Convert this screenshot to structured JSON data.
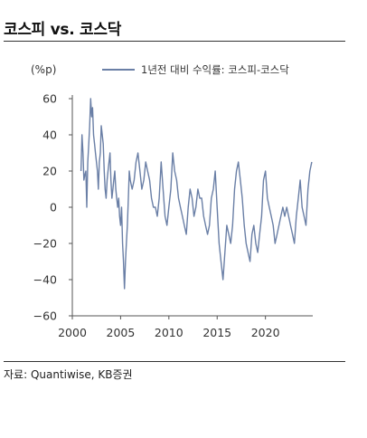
{
  "header": {
    "title": "코스피 vs. 코스닥"
  },
  "footer": {
    "source": "자료: Quantiwise, KB증권"
  },
  "chart_data": {
    "type": "line",
    "title": "코스피 vs. 코스닥",
    "xlabel": "",
    "ylabel": "(%p)",
    "ylim": [
      -60,
      60
    ],
    "xlim": [
      2000,
      2024.9
    ],
    "y_ticks": [
      "60",
      "40",
      "20",
      "0",
      "−20",
      "−40",
      "−60"
    ],
    "y_tick_values": [
      60,
      40,
      20,
      0,
      -20,
      -40,
      -60
    ],
    "x_ticks": [
      "2000",
      "2005",
      "2010",
      "2015",
      "2020"
    ],
    "x_tick_values": [
      2000,
      2005,
      2010,
      2015,
      2020
    ],
    "grid": false,
    "legend_position": "top",
    "colors": {
      "series": "#6a7fa6"
    },
    "series": [
      {
        "name": "1년전 대비 수익률: 코스피-코스닥",
        "x": [
          2000.9,
          2001.0,
          2001.1,
          2001.2,
          2001.3,
          2001.4,
          2001.5,
          2001.6,
          2001.7,
          2001.8,
          2001.9,
          2002.0,
          2002.1,
          2002.2,
          2002.3,
          2002.4,
          2002.5,
          2002.6,
          2002.7,
          2002.8,
          2002.9,
          2003.0,
          2003.1,
          2003.2,
          2003.3,
          2003.4,
          2003.5,
          2003.6,
          2003.7,
          2003.8,
          2003.9,
          2004.0,
          2004.1,
          2004.2,
          2004.3,
          2004.4,
          2004.5,
          2004.6,
          2004.7,
          2004.8,
          2004.9,
          2005.0,
          2005.1,
          2005.2,
          2005.3,
          2005.4,
          2005.5,
          2005.6,
          2005.7,
          2005.8,
          2005.9,
          2006.0,
          2006.2,
          2006.4,
          2006.6,
          2006.8,
          2007.0,
          2007.2,
          2007.4,
          2007.6,
          2007.8,
          2008.0,
          2008.2,
          2008.4,
          2008.6,
          2008.8,
          2009.0,
          2009.2,
          2009.4,
          2009.6,
          2009.8,
          2010.0,
          2010.2,
          2010.4,
          2010.6,
          2010.8,
          2011.0,
          2011.2,
          2011.4,
          2011.6,
          2011.8,
          2012.0,
          2012.2,
          2012.4,
          2012.6,
          2012.8,
          2013.0,
          2013.2,
          2013.4,
          2013.6,
          2013.8,
          2014.0,
          2014.2,
          2014.4,
          2014.6,
          2014.8,
          2015.0,
          2015.2,
          2015.4,
          2015.6,
          2015.8,
          2016.0,
          2016.2,
          2016.4,
          2016.6,
          2016.8,
          2017.0,
          2017.2,
          2017.4,
          2017.6,
          2017.8,
          2018.0,
          2018.2,
          2018.4,
          2018.6,
          2018.8,
          2019.0,
          2019.2,
          2019.4,
          2019.6,
          2019.8,
          2020.0,
          2020.2,
          2020.4,
          2020.6,
          2020.8,
          2021.0,
          2021.2,
          2021.4,
          2021.6,
          2021.8,
          2022.0,
          2022.2,
          2022.4,
          2022.6,
          2022.8,
          2023.0,
          2023.2,
          2023.4,
          2023.6,
          2023.8,
          2024.0,
          2024.2,
          2024.4,
          2024.6,
          2024.8
        ],
        "values": [
          20,
          40,
          30,
          15,
          18,
          20,
          0,
          25,
          35,
          45,
          60,
          50,
          55,
          40,
          35,
          30,
          25,
          20,
          10,
          25,
          30,
          45,
          40,
          35,
          20,
          10,
          5,
          15,
          20,
          25,
          30,
          15,
          5,
          10,
          15,
          20,
          10,
          5,
          0,
          5,
          -5,
          -10,
          0,
          -20,
          -30,
          -45,
          -30,
          -20,
          -10,
          5,
          20,
          15,
          10,
          15,
          25,
          30,
          20,
          10,
          15,
          25,
          20,
          15,
          5,
          0,
          0,
          -5,
          5,
          25,
          10,
          -5,
          -10,
          0,
          10,
          30,
          20,
          15,
          5,
          0,
          -5,
          -10,
          -15,
          0,
          10,
          5,
          -5,
          0,
          10,
          5,
          5,
          -5,
          -10,
          -15,
          -10,
          5,
          10,
          20,
          0,
          -20,
          -30,
          -40,
          -25,
          -10,
          -15,
          -20,
          -10,
          10,
          20,
          25,
          15,
          5,
          -10,
          -20,
          -25,
          -30,
          -15,
          -10,
          -20,
          -25,
          -15,
          -5,
          15,
          20,
          5,
          0,
          -5,
          -10,
          -20,
          -15,
          -10,
          -5,
          0,
          -5,
          0,
          -5,
          -10,
          -15,
          -20,
          -5,
          5,
          15,
          0,
          -5,
          -10,
          10,
          20,
          25
        ]
      }
    ]
  }
}
